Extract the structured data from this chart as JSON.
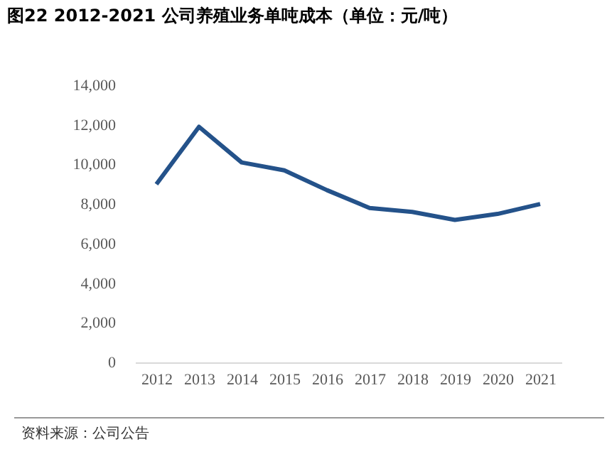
{
  "chart_data": {
    "type": "line",
    "title": "图22 2012-2021 公司养殖业务单吨成本（单位：元/吨）",
    "categories": [
      "2012",
      "2013",
      "2014",
      "2015",
      "2016",
      "2017",
      "2018",
      "2019",
      "2020",
      "2021"
    ],
    "series": [
      {
        "color": "#24528a",
        "values": [
          9000,
          11900,
          10100,
          9700,
          8700,
          7800,
          7600,
          7200,
          7500,
          8000
        ]
      }
    ],
    "ylim": [
      0,
      14000
    ],
    "yticks": [
      0,
      {
        "value": 2000,
        "label": "2,000"
      },
      {
        "value": 4000,
        "label": "4,000"
      },
      {
        "value": 6000,
        "label": "6,000"
      },
      {
        "value": 8000,
        "label": "8,000"
      },
      {
        "value": 10000,
        "label": "10,000"
      },
      {
        "value": 12000,
        "label": "12,000"
      },
      {
        "value": 14000,
        "label": "14,000"
      }
    ],
    "grid": false,
    "legend": false,
    "marker": "none",
    "line_style": "solid",
    "annotations": [
      "资料来源：公司公告"
    ]
  }
}
